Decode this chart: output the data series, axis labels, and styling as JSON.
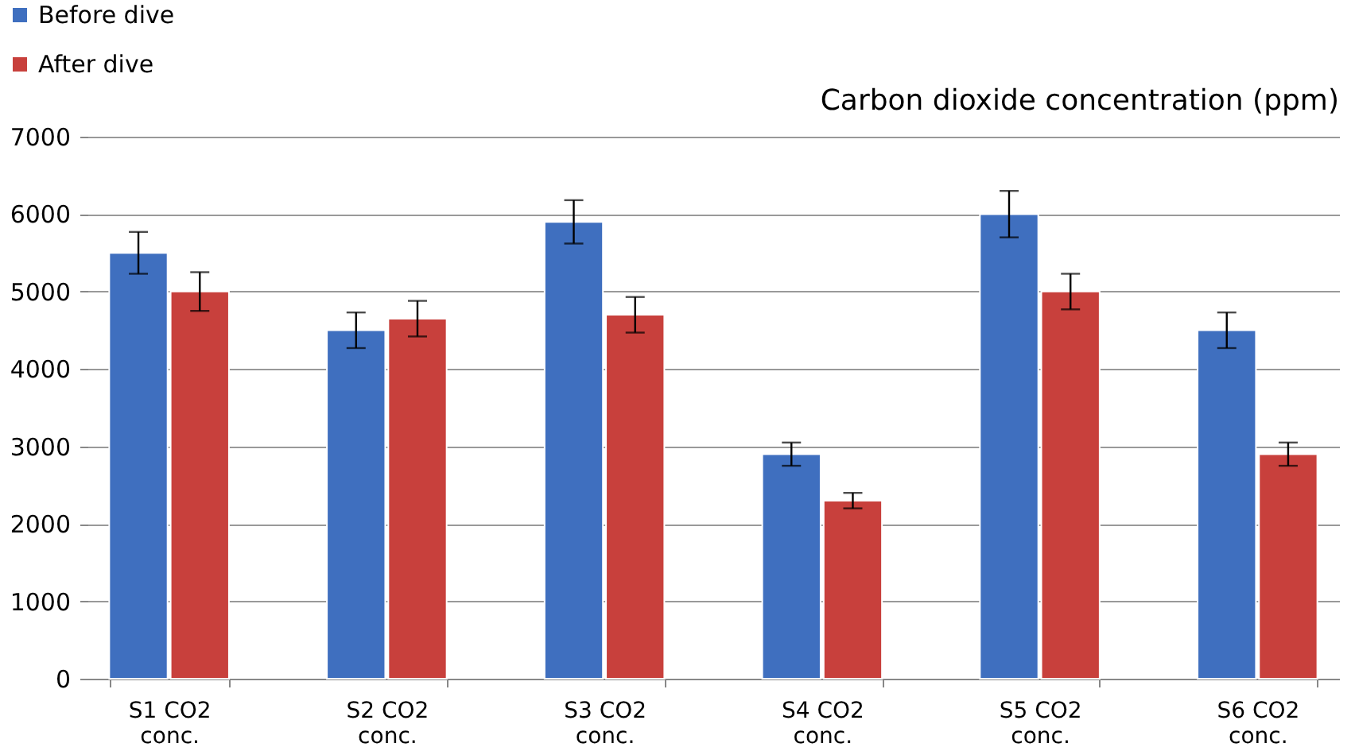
{
  "chart_data": {
    "type": "bar",
    "title": "Carbon dioxide concentration (ppm)",
    "categories": [
      "S1 CO2 conc.",
      "S2 CO2 conc.",
      "S3 CO2 conc.",
      "S4 CO2 conc.",
      "S5 CO2 conc.",
      "S6 CO2 conc."
    ],
    "series": [
      {
        "name": "Before dive",
        "color": "#3f6fbf",
        "values": [
          5500,
          4500,
          5900,
          2900,
          6000,
          4500
        ],
        "errors": [
          270,
          230,
          280,
          150,
          300,
          230
        ]
      },
      {
        "name": "After dive",
        "color": "#c8403c",
        "values": [
          5000,
          4650,
          4700,
          2300,
          5000,
          2900
        ],
        "errors": [
          250,
          230,
          230,
          100,
          230,
          150
        ]
      }
    ],
    "ylim": [
      0,
      7000
    ],
    "yticks": [
      0,
      1000,
      2000,
      3000,
      4000,
      5000,
      6000,
      7000
    ],
    "grid": "y",
    "legend": "top left"
  }
}
